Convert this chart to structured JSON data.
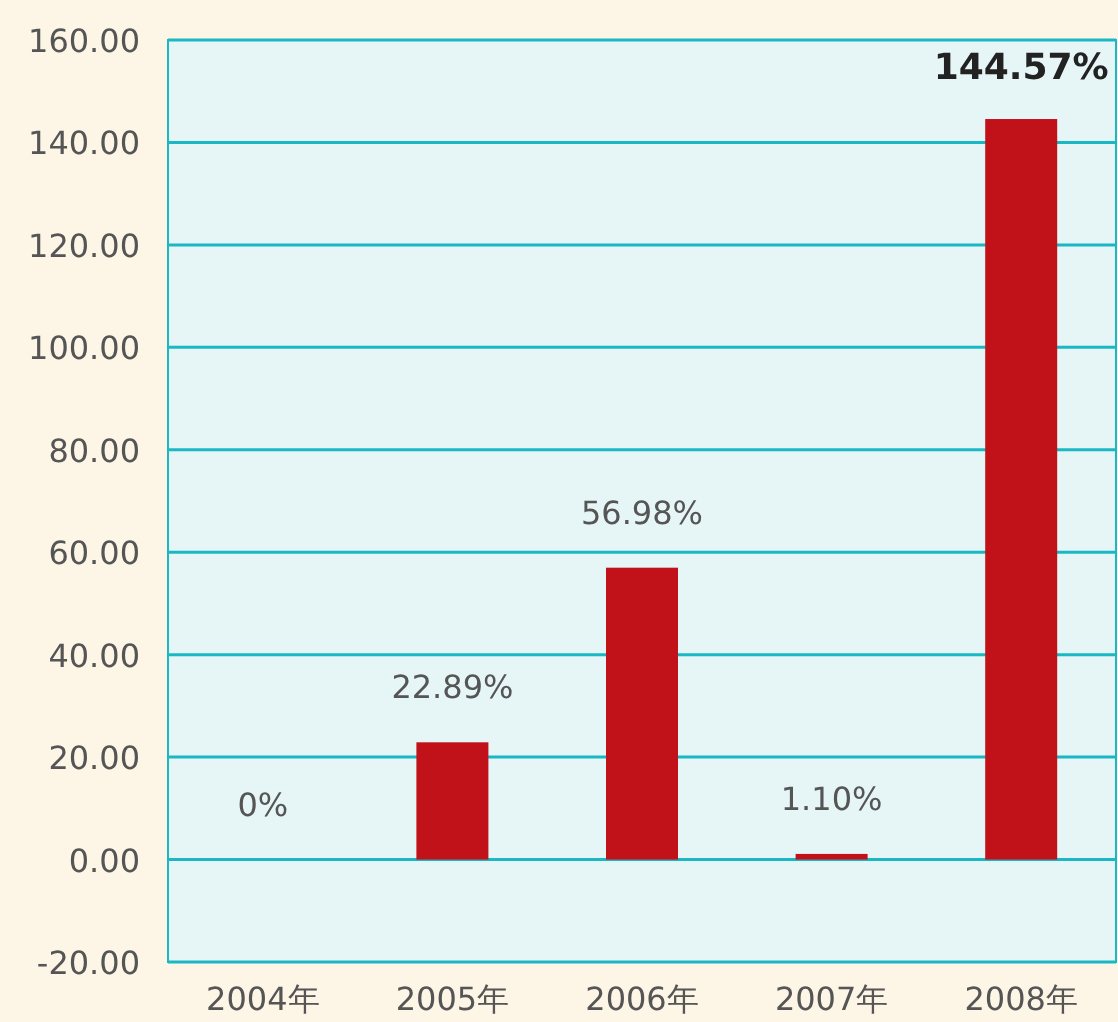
{
  "chart_data": {
    "type": "bar",
    "categories": [
      "2004年",
      "2005年",
      "2006年",
      "2007年",
      "2008年"
    ],
    "values": [
      0,
      22.89,
      56.98,
      1.1,
      144.57
    ],
    "value_labels": [
      "0%",
      "22.89%",
      "56.98%",
      "1.10%",
      "144.57%"
    ],
    "color": "#c1121a",
    "ylim": [
      -20,
      160
    ],
    "yticks": [
      {
        "value": -20,
        "label": "-20.00"
      },
      {
        "value": 0,
        "label": "0.00"
      },
      {
        "value": 20,
        "label": "20.00"
      },
      {
        "value": 40,
        "label": "40.00"
      },
      {
        "value": 60,
        "label": "60.00"
      },
      {
        "value": 80,
        "label": "80.00"
      },
      {
        "value": 100,
        "label": "100.00"
      },
      {
        "value": 120,
        "label": "120.00"
      },
      {
        "value": 140,
        "label": "140.00"
      },
      {
        "value": 160,
        "label": "160.00"
      }
    ],
    "grid": "y"
  }
}
